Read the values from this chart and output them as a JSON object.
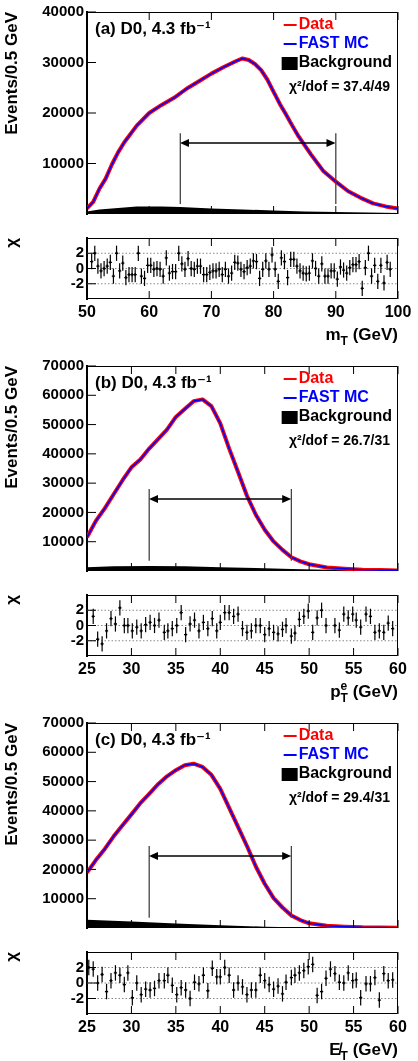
{
  "chart_data": [
    {
      "type": "line",
      "title": "(a) D0, 4.3 fb⁻¹",
      "ylabel": "Events/0.5 GeV",
      "annotations": [
        "χ²/dof = 37.4/49"
      ],
      "legend": "top right",
      "tick_labels": "y",
      "xlim": [
        50,
        100
      ],
      "xticks": [
        50,
        60,
        70,
        80,
        90,
        100
      ],
      "ylim": [
        0,
        40000
      ],
      "yticks": [
        10000,
        20000,
        30000,
        40000
      ],
      "ref_lines": [
        {
          "axis": "x",
          "value": 65,
          "color": "#444444"
        },
        {
          "axis": "x",
          "value": 90,
          "color": "#444444"
        }
      ],
      "series": [
        {
          "name": "Data",
          "color": "#ff0000",
          "x": [
            50,
            51,
            52,
            53,
            54,
            55,
            56,
            58,
            60,
            62,
            64,
            66,
            68,
            70,
            72,
            74,
            75,
            76,
            77,
            78,
            79,
            80,
            81,
            82,
            83,
            84,
            85,
            86,
            88,
            90,
            92,
            94,
            96,
            98,
            100
          ],
          "values": [
            1100,
            2400,
            5000,
            7000,
            9800,
            12200,
            14200,
            17500,
            20000,
            21600,
            23000,
            24800,
            26300,
            27800,
            29100,
            30300,
            30800,
            30500,
            29700,
            28500,
            26600,
            24200,
            21800,
            19700,
            17500,
            15400,
            13600,
            11800,
            8500,
            6400,
            4500,
            3200,
            2100,
            1500,
            1100
          ]
        },
        {
          "name": "FAST MC",
          "color": "#0000ff",
          "x": [
            50,
            51,
            52,
            53,
            54,
            55,
            56,
            58,
            60,
            62,
            64,
            66,
            68,
            70,
            72,
            74,
            75,
            76,
            77,
            78,
            79,
            80,
            81,
            82,
            83,
            84,
            85,
            86,
            88,
            90,
            92,
            94,
            96,
            98,
            100
          ],
          "values": [
            1100,
            2400,
            5000,
            7000,
            9800,
            12200,
            14200,
            17500,
            20000,
            21600,
            23000,
            24800,
            26300,
            27800,
            29100,
            30300,
            30800,
            30500,
            29700,
            28500,
            26600,
            24200,
            21800,
            19700,
            17500,
            15400,
            13600,
            11800,
            8500,
            6400,
            4500,
            3200,
            2100,
            1500,
            1100
          ]
        },
        {
          "name": "Background",
          "type": "area",
          "color": "#000000",
          "x": [
            50,
            52,
            55,
            58,
            60,
            62,
            65,
            70,
            75,
            80,
            85,
            90,
            95,
            100
          ],
          "values": [
            500,
            900,
            1200,
            1500,
            1500,
            1500,
            1400,
            1100,
            900,
            700,
            500,
            400,
            300,
            210
          ]
        }
      ]
    },
    {
      "type": "scatter",
      "ylabel": "χ",
      "xlabel": "m$_{T}$ (GeV)",
      "xlim": [
        50,
        100
      ],
      "xticks": [
        50,
        60,
        70,
        80,
        90,
        100
      ],
      "ylim": [
        -4,
        4
      ],
      "yticks": [
        -2,
        0,
        2
      ],
      "grid": "y",
      "marker": "cross",
      "series": [
        {
          "color": "#000000",
          "x": [
            50.75,
            51.25,
            51.75,
            52.25,
            52.75,
            53.25,
            53.75,
            54.25,
            54.75,
            55.25,
            55.75,
            56.25,
            56.75,
            57.25,
            57.75,
            58.25,
            58.75,
            59.25,
            59.75,
            60.25,
            60.75,
            61.25,
            61.75,
            62.25,
            62.75,
            63.25,
            63.75,
            64.25,
            64.75,
            65.25,
            65.75,
            66.25,
            66.75,
            67.25,
            67.75,
            68.25,
            68.75,
            69.25,
            69.75,
            70.25,
            70.75,
            71.25,
            71.75,
            72.25,
            72.75,
            73.25,
            73.75,
            74.25,
            74.75,
            75.25,
            75.75,
            76.25,
            76.75,
            77.25,
            77.75,
            78.25,
            78.75,
            79.25,
            79.75,
            80.25,
            80.75,
            81.25,
            81.75,
            82.25,
            82.75,
            83.25,
            83.75,
            84.25,
            84.75,
            85.25,
            85.75,
            86.25,
            86.75,
            87.25,
            87.75,
            88.25,
            88.75,
            89.25,
            89.75,
            90.25,
            90.75,
            91.25,
            91.75,
            92.25,
            92.75,
            93.25,
            93.75,
            94.25,
            94.75,
            95.25,
            95.75,
            96.25,
            96.75,
            97.25,
            97.75,
            98.25,
            98.75
          ],
          "values": [
            0.9,
            2.0,
            0.3,
            -0.3,
            0,
            0.3,
            0.8,
            -1.0,
            2.0,
            -0.3,
            0.7,
            -1.2,
            -0.8,
            -0.8,
            -0.8,
            2.0,
            -1.0,
            -1.3,
            0.4,
            0.4,
            -0.1,
            0,
            -0.1,
            -1.0,
            1.4,
            -0.6,
            -0.4,
            -0.4,
            2.0,
            0.6,
            -0.1,
            1.3,
            0,
            -0.1,
            0.3,
            0.3,
            -0.8,
            -0.8,
            -0.5,
            -0.3,
            -0.3,
            -0.1,
            -0.8,
            -0.1,
            -1.0,
            -0.6,
            0.8,
            0.7,
            -0.1,
            -0.4,
            0.1,
            0.3,
            1.0,
            0.9,
            -1.3,
            -0.1,
            1.0,
            -0.1,
            1.8,
            -0.1,
            -1.7,
            1.4,
            0.9,
            -1.2,
            1.2,
            1.2,
            0.3,
            -0.3,
            -0.6,
            -0.7,
            -0.6,
            1.0,
            0,
            -1.0,
            0.6,
            -1.0,
            -1.0,
            -0.3,
            -0.3,
            -1.4,
            0.2,
            -0.2,
            -0.6,
            0.1,
            0.5,
            0.5,
            0.9,
            -2.6,
            0.1,
            2.0,
            -1.0,
            0.4,
            -1.7,
            0.4,
            -1.9,
            0.8,
            -0.1
          ],
          "errors": [
            1,
            1,
            1,
            1,
            1,
            1,
            1,
            1,
            1,
            1,
            1,
            1,
            1,
            1,
            1,
            1,
            1,
            1,
            1,
            1,
            1,
            1,
            1,
            1,
            1,
            1,
            1,
            1,
            1,
            1,
            1,
            1,
            1,
            1,
            1,
            1,
            1,
            1,
            1,
            1,
            1,
            1,
            1,
            1,
            1,
            1,
            1,
            1,
            1,
            1,
            1,
            1,
            1,
            1,
            1,
            1,
            1,
            1,
            1,
            1,
            1,
            1,
            1,
            1,
            1,
            1,
            1,
            1,
            1,
            1,
            1,
            1,
            1,
            1,
            1,
            1,
            1,
            1,
            1,
            1,
            1,
            1,
            1,
            1,
            1,
            1,
            1,
            1,
            1,
            1,
            1,
            1,
            1,
            1,
            1,
            1,
            1
          ]
        }
      ]
    },
    {
      "type": "line",
      "title": "(b) D0, 4.3 fb⁻¹",
      "ylabel": "Events/0.5 GeV",
      "annotations": [
        "χ²/dof = 26.7/31"
      ],
      "legend": "top right",
      "tick_labels": "y",
      "xlim": [
        25,
        60
      ],
      "xticks": [
        25,
        30,
        35,
        40,
        45,
        50,
        55,
        60
      ],
      "ylim": [
        0,
        70000
      ],
      "yticks": [
        10000,
        20000,
        30000,
        40000,
        50000,
        60000,
        70000
      ],
      "ref_lines": [
        {
          "axis": "x",
          "value": 32,
          "color": "#444444"
        },
        {
          "axis": "x",
          "value": 48,
          "color": "#444444"
        }
      ],
      "series": [
        {
          "name": "Data",
          "color": "#ff0000",
          "x": [
            25,
            26,
            27,
            28,
            29,
            30,
            31,
            32,
            33,
            34,
            35,
            36,
            37,
            38,
            39,
            40,
            41,
            42,
            43,
            44,
            45,
            46,
            47,
            48,
            49,
            50,
            52,
            54,
            56,
            58,
            60
          ],
          "values": [
            11500,
            17100,
            21400,
            26200,
            31000,
            35400,
            38100,
            41800,
            45000,
            48300,
            52600,
            55300,
            58000,
            58600,
            56300,
            50400,
            41800,
            33800,
            25700,
            19200,
            14100,
            10100,
            7200,
            4700,
            3300,
            2300,
            1200,
            750,
            430,
            300,
            200
          ]
        },
        {
          "name": "FAST MC",
          "color": "#0000ff",
          "x": [
            25,
            26,
            27,
            28,
            29,
            30,
            31,
            32,
            33,
            34,
            35,
            36,
            37,
            38,
            39,
            40,
            41,
            42,
            43,
            44,
            45,
            46,
            47,
            48,
            49,
            50,
            52,
            54,
            56,
            58,
            60
          ],
          "values": [
            11500,
            17100,
            21400,
            26200,
            31000,
            35400,
            38100,
            41800,
            45000,
            48300,
            52600,
            55300,
            58000,
            58600,
            56300,
            50400,
            41800,
            33800,
            25700,
            19200,
            14100,
            10100,
            7200,
            4700,
            3300,
            2300,
            1200,
            750,
            430,
            300,
            200
          ]
        },
        {
          "name": "Background",
          "type": "area",
          "color": "#000000",
          "x": [
            25,
            28,
            32,
            36,
            40,
            44,
            48,
            52,
            56,
            60
          ],
          "values": [
            1300,
            1600,
            1700,
            1600,
            1300,
            1000,
            700,
            450,
            250,
            100
          ]
        }
      ]
    },
    {
      "type": "scatter",
      "ylabel": "χ",
      "xlabel": "p$^{e}$$_{T}$ (GeV)",
      "xlim": [
        25,
        60
      ],
      "xticks": [
        25,
        30,
        35,
        40,
        45,
        50,
        55,
        60
      ],
      "ylim": [
        -4,
        4
      ],
      "yticks": [
        -2,
        0,
        2
      ],
      "grid": "y",
      "marker": "cross",
      "series": [
        {
          "color": "#000000",
          "x": [
            25.7,
            26.2,
            26.7,
            27.2,
            27.7,
            28.2,
            28.7,
            29.2,
            29.6,
            30.1,
            30.6,
            31.1,
            31.6,
            32.1,
            32.6,
            33.1,
            33.7,
            34.1,
            34.6,
            35.1,
            35.6,
            36.1,
            36.6,
            37.1,
            37.6,
            38.1,
            38.6,
            39.1,
            39.6,
            40.0,
            40.5,
            41.0,
            41.5,
            42.0,
            42.5,
            43.0,
            43.5,
            44.0,
            44.5,
            45.0,
            45.5,
            46.0,
            46.5,
            47.0,
            47.4,
            48.0,
            48.4,
            48.9,
            49.4,
            49.9,
            50.4,
            50.9,
            51.4,
            51.9,
            52.9,
            53.4,
            53.9,
            54.4,
            54.9,
            55.3,
            55.8,
            56.4,
            56.9,
            57.4,
            57.9,
            58.4,
            58.9,
            59.4
          ],
          "values": [
            1.2,
            -1.8,
            -2.4,
            -0.7,
            0.9,
            0.2,
            2.3,
            0,
            0,
            -0.7,
            -0.2,
            -0.7,
            0.1,
            0.4,
            0,
            0.7,
            -0.9,
            -0.7,
            -0.4,
            0,
            1.7,
            -1.2,
            0.2,
            0.7,
            -0.7,
            0.4,
            -0.4,
            0.9,
            -0.7,
            0.4,
            1.7,
            1.7,
            1.2,
            1.5,
            -0.4,
            -0.9,
            -0.7,
            0,
            0,
            -1.2,
            -0.4,
            -0.9,
            -1.1,
            -0.5,
            0,
            -1.4,
            -1.0,
            0.8,
            1.2,
            1.9,
            -0.9,
            1.0,
            2.0,
            0,
            0,
            -0.6,
            1.5,
            1.0,
            1.5,
            0.7,
            -0.2,
            1.5,
            1.2,
            -0.9,
            -0.7,
            -0.9,
            0.3,
            -0.4
          ],
          "errors": [
            1,
            1,
            1,
            1,
            1,
            1,
            1,
            1,
            1,
            1,
            1,
            1,
            1,
            1,
            1,
            1,
            1,
            1,
            1,
            1,
            1,
            1,
            1,
            1,
            1,
            1,
            1,
            1,
            1,
            1,
            1,
            1,
            1,
            1,
            1,
            1,
            1,
            1,
            1,
            1,
            1,
            1,
            1,
            1,
            1,
            1,
            1,
            1,
            1,
            1,
            1,
            1,
            1,
            1,
            1,
            1,
            1,
            1,
            1,
            1,
            1,
            1,
            1,
            1,
            1,
            1,
            1,
            1
          ]
        }
      ]
    },
    {
      "type": "line",
      "title": "(c) D0, 4.3 fb⁻¹",
      "ylabel": "Events/0.5 GeV",
      "annotations": [
        "χ²/dof = 29.4/31"
      ],
      "legend": "top right",
      "tick_labels": "y",
      "xlim": [
        25,
        60
      ],
      "xticks": [
        25,
        30,
        35,
        40,
        45,
        50,
        55,
        60
      ],
      "ylim": [
        0,
        70000
      ],
      "yticks": [
        10000,
        20000,
        30000,
        40000,
        50000,
        60000,
        70000
      ],
      "ref_lines": [
        {
          "axis": "x",
          "value": 32,
          "color": "#444444"
        },
        {
          "axis": "x",
          "value": 48,
          "color": "#444444"
        }
      ],
      "series": [
        {
          "name": "Data",
          "color": "#ff0000",
          "x": [
            25,
            26,
            27,
            28,
            29,
            30,
            31,
            32,
            33,
            34,
            35,
            36,
            37,
            38,
            39,
            40,
            41,
            42,
            43,
            44,
            45,
            46,
            47,
            48,
            49,
            50,
            52,
            54,
            56,
            60
          ],
          "values": [
            18900,
            23200,
            27000,
            31300,
            35100,
            38800,
            42600,
            45800,
            49100,
            51800,
            53900,
            55600,
            56100,
            55000,
            52300,
            47500,
            41000,
            34500,
            28000,
            21000,
            15100,
            10200,
            7000,
            4300,
            2700,
            1600,
            750,
            430,
            220,
            100
          ]
        },
        {
          "name": "FAST MC",
          "color": "#0000ff",
          "x": [
            25,
            26,
            27,
            28,
            29,
            30,
            31,
            32,
            33,
            34,
            35,
            36,
            37,
            38,
            39,
            40,
            41,
            42,
            43,
            44,
            45,
            46,
            47,
            48,
            49,
            50,
            52,
            54,
            56,
            60
          ],
          "values": [
            18900,
            23200,
            27000,
            31300,
            35100,
            38800,
            42600,
            45800,
            49100,
            51800,
            53900,
            55600,
            56100,
            55000,
            52300,
            47500,
            41000,
            34500,
            28000,
            21000,
            15100,
            10200,
            7000,
            4300,
            2700,
            1600,
            750,
            430,
            220,
            100
          ]
        },
        {
          "name": "Background",
          "type": "area",
          "color": "#000000",
          "x": [
            25,
            30,
            35,
            40,
            45,
            50,
            55,
            60
          ],
          "values": [
            2800,
            2200,
            1500,
            900,
            450,
            200,
            100,
            50
          ]
        }
      ]
    },
    {
      "type": "scatter",
      "ylabel": "χ",
      "xlabel": "E̸$_{T}$ (GeV)",
      "xlim": [
        25,
        60
      ],
      "xticks": [
        25,
        30,
        35,
        40,
        45,
        50,
        55,
        60
      ],
      "ylim": [
        -4,
        4
      ],
      "yticks": [
        -2,
        0,
        2
      ],
      "grid": "y",
      "marker": "cross",
      "series": [
        {
          "color": "#000000",
          "x": [
            25.2,
            25.7,
            26.2,
            26.7,
            27.2,
            27.7,
            28.2,
            28.7,
            29.2,
            29.6,
            30.1,
            30.6,
            31.1,
            31.6,
            32.1,
            32.6,
            33.1,
            33.7,
            34.1,
            34.6,
            35.1,
            35.6,
            36.1,
            36.6,
            37.1,
            37.6,
            38.1,
            38.6,
            39.1,
            39.6,
            40.0,
            40.5,
            41.0,
            41.5,
            42.0,
            42.5,
            43.0,
            43.5,
            44.0,
            44.5,
            45.0,
            45.5,
            46.0,
            46.5,
            47.0,
            47.4,
            48.0,
            48.4,
            48.9,
            49.4,
            49.9,
            50.4,
            50.9,
            51.4,
            51.9,
            52.4,
            52.9,
            53.4,
            53.9,
            54.4,
            54.9,
            55.3,
            55.8,
            56.4,
            56.9,
            57.4,
            57.9,
            58.4,
            58.9,
            59.4
          ],
          "values": [
            2.0,
            1.8,
            0,
            1.1,
            -1.1,
            0.3,
            1.3,
            1.0,
            -0.2,
            1.3,
            -1.9,
            0,
            -1.5,
            -0.8,
            -0.9,
            -0.7,
            0.3,
            0.3,
            1.0,
            -0.3,
            -1.5,
            -0.6,
            -0.9,
            -2.0,
            0.1,
            -0.1,
            1.0,
            -1.0,
            1.9,
            0.8,
            0.8,
            2.0,
            1.0,
            -0.9,
            0,
            -0.5,
            -1.5,
            -0.9,
            -0.9,
            1.0,
            0.3,
            -0.2,
            -0.8,
            -0.4,
            -1.4,
            0.1,
            0.7,
            1.0,
            1.3,
            1.6,
            2.1,
            2.4,
            -1.6,
            -1.1,
            0.6,
            1.8,
            1.2,
            0.1,
            0,
            1.3,
            0.3,
            0.4,
            -1.9,
            -0.1,
            -0.1,
            0.7,
            -2.2,
            1.2,
            0.3,
            0.4
          ],
          "errors": [
            1,
            1,
            1,
            1,
            1,
            1,
            1,
            1,
            1,
            1,
            1,
            1,
            1,
            1,
            1,
            1,
            1,
            1,
            1,
            1,
            1,
            1,
            1,
            1,
            1,
            1,
            1,
            1,
            1,
            1,
            1,
            1,
            1,
            1,
            1,
            1,
            1,
            1,
            1,
            1,
            1,
            1,
            1,
            1,
            1,
            1,
            1,
            1,
            1,
            1,
            1,
            1,
            1,
            1,
            1,
            1,
            1,
            1,
            1,
            1,
            1,
            1,
            1,
            1,
            1,
            1,
            1,
            1,
            1,
            1
          ]
        }
      ]
    }
  ]
}
